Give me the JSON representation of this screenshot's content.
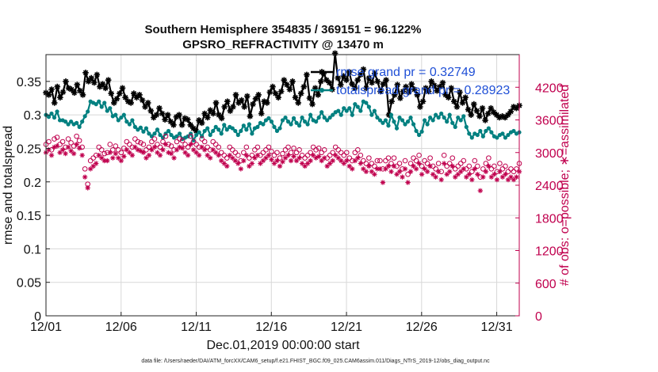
{
  "chart_data": {
    "type": "line",
    "title": "Southern Hemisphere 354835 / 369151 = 96.122%",
    "subtitle": "GPSRO_REFRACTIVITY @ 13470 m",
    "xlabel": "Dec.01,2019 00:00:00 start",
    "ylabel": "rmse and totalspread",
    "y2label": "# of obs: o=possible; ∗=assimilated",
    "footnote": "data file: /Users/raeder/DAI/ATM_forcXX/CAM6_setup/f.e21.FHIST_BGC.f09_025.CAM6assim.011/Diags_NTrS_2019-12/obs_diag_output.nc",
    "xlim": [
      1,
      32.5
    ],
    "ylim": [
      0,
      0.39
    ],
    "y2lim": [
      0,
      4800
    ],
    "x_ticks": [
      1,
      6,
      11,
      16,
      21,
      26,
      31
    ],
    "x_tick_labels": [
      "12/01",
      "12/06",
      "12/11",
      "12/16",
      "12/21",
      "12/26",
      "12/31"
    ],
    "y_ticks": [
      "0",
      "0.05",
      "0.1",
      "0.15",
      "0.2",
      "0.25",
      "0.3",
      "0.35"
    ],
    "y2_ticks": [
      "0",
      "600",
      "1200",
      "1800",
      "2400",
      "3000",
      "3600",
      "4200"
    ],
    "grid": true,
    "legend_position": "top-right",
    "series": [
      {
        "name": "rmse grand pr = 0.32749",
        "axis": "left",
        "color": "#000000",
        "marker": "asterisk",
        "values": [
          0.333,
          0.33,
          0.338,
          0.318,
          0.342,
          0.326,
          0.334,
          0.35,
          0.34,
          0.338,
          0.333,
          0.345,
          0.336,
          0.33,
          0.363,
          0.35,
          0.355,
          0.348,
          0.36,
          0.342,
          0.346,
          0.34,
          0.352,
          0.332,
          0.318,
          0.324,
          0.332,
          0.34,
          0.326,
          0.32,
          0.318,
          0.332,
          0.326,
          0.33,
          0.322,
          0.312,
          0.318,
          0.306,
          0.296,
          0.3,
          0.31,
          0.302,
          0.293,
          0.3,
          0.29,
          0.285,
          0.297,
          0.3,
          0.285,
          0.295,
          0.293,
          0.285,
          0.28,
          0.276,
          0.292,
          0.288,
          0.302,
          0.296,
          0.307,
          0.302,
          0.318,
          0.3,
          0.295,
          0.312,
          0.32,
          0.306,
          0.312,
          0.33,
          0.318,
          0.322,
          0.312,
          0.328,
          0.298,
          0.316,
          0.324,
          0.33,
          0.302,
          0.32,
          0.318,
          0.334,
          0.342,
          0.332,
          0.326,
          0.335,
          0.352,
          0.345,
          0.338,
          0.35,
          0.326,
          0.318,
          0.332,
          0.342,
          0.36,
          0.325,
          0.316,
          0.34,
          0.33,
          0.35,
          0.362,
          0.352,
          0.348,
          0.338,
          0.392,
          0.355,
          0.345,
          0.358,
          0.352,
          0.364,
          0.346,
          0.34,
          0.352,
          0.36,
          0.368,
          0.34,
          0.355,
          0.348,
          0.362,
          0.35,
          0.335,
          0.346,
          0.352,
          0.3,
          0.32,
          0.33,
          0.345,
          0.325,
          0.335,
          0.342,
          0.334,
          0.346,
          0.338,
          0.33,
          0.312,
          0.32,
          0.34,
          0.335,
          0.35,
          0.344,
          0.336,
          0.342,
          0.348,
          0.33,
          0.326,
          0.34,
          0.32,
          0.312,
          0.334,
          0.318,
          0.326,
          0.308,
          0.3,
          0.316,
          0.306,
          0.298,
          0.31,
          0.292,
          0.302,
          0.31,
          0.304,
          0.3,
          0.296,
          0.298,
          0.296,
          0.3,
          0.305,
          0.312,
          0.31,
          0.314
        ]
      },
      {
        "name": "totalspread grand pr = 0.28923",
        "axis": "left",
        "color": "#008080",
        "marker": "dot",
        "values": [
          0.3,
          0.297,
          0.302,
          0.296,
          0.305,
          0.292,
          0.292,
          0.29,
          0.286,
          0.29,
          0.286,
          0.288,
          0.282,
          0.29,
          0.298,
          0.305,
          0.32,
          0.318,
          0.316,
          0.32,
          0.312,
          0.318,
          0.306,
          0.31,
          0.298,
          0.3,
          0.292,
          0.296,
          0.3,
          0.29,
          0.286,
          0.292,
          0.282,
          0.278,
          0.281,
          0.275,
          0.28,
          0.272,
          0.268,
          0.272,
          0.278,
          0.27,
          0.266,
          0.272,
          0.276,
          0.27,
          0.266,
          0.268,
          0.272,
          0.264,
          0.266,
          0.268,
          0.272,
          0.262,
          0.27,
          0.274,
          0.268,
          0.276,
          0.28,
          0.27,
          0.276,
          0.282,
          0.278,
          0.272,
          0.285,
          0.278,
          0.282,
          0.28,
          0.276,
          0.27,
          0.276,
          0.284,
          0.278,
          0.286,
          0.272,
          0.28,
          0.282,
          0.288,
          0.286,
          0.292,
          0.295,
          0.29,
          0.282,
          0.276,
          0.28,
          0.292,
          0.296,
          0.29,
          0.286,
          0.295,
          0.288,
          0.284,
          0.296,
          0.29,
          0.286,
          0.3,
          0.292,
          0.29,
          0.296,
          0.304,
          0.296,
          0.292,
          0.296,
          0.3,
          0.304,
          0.306,
          0.3,
          0.31,
          0.306,
          0.31,
          0.3,
          0.316,
          0.312,
          0.306,
          0.32,
          0.318,
          0.312,
          0.3,
          0.306,
          0.296,
          0.292,
          0.288,
          0.292,
          0.284,
          0.3,
          0.29,
          0.28,
          0.296,
          0.292,
          0.286,
          0.29,
          0.296,
          0.286,
          0.276,
          0.27,
          0.275,
          0.292,
          0.286,
          0.296,
          0.292,
          0.3,
          0.296,
          0.302,
          0.296,
          0.29,
          0.3,
          0.288,
          0.282,
          0.296,
          0.292,
          0.298,
          0.282,
          0.272,
          0.266,
          0.272,
          0.27,
          0.276,
          0.268,
          0.276,
          0.28,
          0.274,
          0.268,
          0.266,
          0.27,
          0.272,
          0.266,
          0.27,
          0.274,
          0.276,
          0.272,
          0.274
        ]
      },
      {
        "name": "possible",
        "axis": "right",
        "color": "#c0004e",
        "marker": "circle",
        "values": [
          3150,
          3200,
          3050,
          3250,
          3280,
          3150,
          3200,
          3100,
          3250,
          3180,
          3120,
          3300,
          3220,
          3100,
          2700,
          2420,
          2850,
          2900,
          2950,
          3100,
          3050,
          2980,
          3000,
          3150,
          3050,
          3120,
          3050,
          3000,
          3080,
          3200,
          3150,
          3100,
          3250,
          3200,
          3180,
          3150,
          3050,
          3100,
          3200,
          3250,
          3150,
          3100,
          3200,
          3300,
          3150,
          3120,
          3050,
          3200,
          3250,
          3220,
          3150,
          3100,
          3300,
          3200,
          3150,
          3100,
          3250,
          3200,
          3100,
          3050,
          3200,
          3150,
          3100,
          3000,
          2950,
          2900,
          3100,
          3050,
          3000,
          2950,
          2850,
          3000,
          3100,
          2900,
          2950,
          3050,
          3100,
          2950,
          3000,
          3050,
          3100,
          3020,
          2950,
          3000,
          2900,
          2980,
          3050,
          3100,
          3000,
          3080,
          3000,
          3050,
          2950,
          2900,
          2950,
          3000,
          3100,
          3050,
          3080,
          3000,
          3050,
          2900,
          2950,
          3000,
          3100,
          3050,
          3000,
          2950,
          3000,
          2900,
          2850,
          3000,
          3050,
          2950,
          2850,
          2800,
          2900,
          2800,
          2750,
          2850,
          2850,
          2700,
          2850,
          2900,
          2800,
          2900,
          2750,
          2800,
          2700,
          2850,
          2600,
          2800,
          2900,
          2850,
          2950,
          2750,
          2850,
          2800,
          2900,
          2750,
          2700,
          2800,
          2650,
          2950,
          2750,
          2800,
          2900,
          2700,
          2750,
          2800,
          2850,
          2700,
          2750,
          2650,
          2850,
          2750,
          2550,
          2700,
          2800,
          2900,
          2700,
          2750,
          2650,
          2800,
          2700,
          2750,
          2650,
          2700,
          2650,
          2700,
          2800
        ]
      },
      {
        "name": "assimilated",
        "axis": "right",
        "color": "#c0004e",
        "marker": "asterisk",
        "values": [
          3000,
          3050,
          2950,
          3100,
          3120,
          3000,
          3050,
          2980,
          3100,
          3030,
          2980,
          3150,
          3080,
          2950,
          2550,
          2350,
          2700,
          2750,
          2800,
          2950,
          2900,
          2850,
          2850,
          3000,
          2900,
          2980,
          2900,
          2850,
          2930,
          3050,
          3000,
          2950,
          3100,
          3050,
          3030,
          3000,
          2900,
          2950,
          3050,
          3100,
          3000,
          2950,
          3050,
          3150,
          3000,
          2980,
          2900,
          3050,
          3100,
          3080,
          3000,
          2950,
          3150,
          3050,
          3000,
          2950,
          3100,
          3050,
          2950,
          2900,
          3050,
          3000,
          2950,
          2850,
          2800,
          2750,
          2950,
          2900,
          2850,
          2800,
          2700,
          2850,
          2950,
          2750,
          2800,
          2900,
          2950,
          2800,
          2850,
          2900,
          2950,
          2870,
          2800,
          2850,
          2750,
          2830,
          2900,
          2950,
          2850,
          2930,
          2850,
          2900,
          2800,
          2750,
          2800,
          2850,
          2950,
          2900,
          2930,
          2850,
          2900,
          2750,
          2800,
          2850,
          2950,
          2900,
          2850,
          2800,
          2850,
          2750,
          2700,
          2850,
          2900,
          2800,
          2700,
          2650,
          2750,
          2650,
          2600,
          2700,
          2700,
          2450,
          2700,
          2750,
          2650,
          2750,
          2600,
          2650,
          2550,
          2700,
          2450,
          2650,
          2750,
          2700,
          2800,
          2600,
          2700,
          2650,
          2750,
          2600,
          2550,
          2650,
          2500,
          2800,
          2600,
          2650,
          2750,
          2550,
          2600,
          2650,
          2700,
          2550,
          2600,
          2500,
          2700,
          2600,
          2300,
          2550,
          2650,
          2750,
          2550,
          2600,
          2500,
          2650,
          2550,
          2600,
          2500,
          2550,
          2500,
          2550,
          2650
        ]
      }
    ]
  }
}
